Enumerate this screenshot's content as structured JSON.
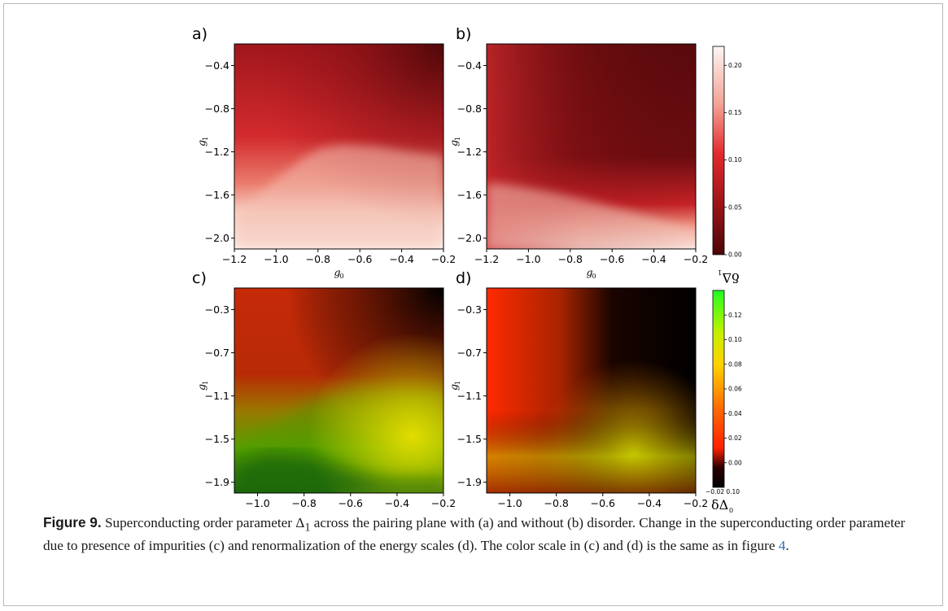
{
  "figure": {
    "panel_labels": [
      "a)",
      "b)",
      "c)",
      "d)"
    ],
    "axis_labels": {
      "x_main": "g",
      "x_sub": "0",
      "y_main": "g",
      "y_sub": "1"
    },
    "colorbars": {
      "top": {
        "ticks": [
          "0.00",
          "0.05",
          "0.10",
          "0.15",
          "0.20"
        ]
      },
      "bottom": {
        "ticks": [
          "0.00",
          "0.02",
          "0.04",
          "0.06",
          "0.08",
          "0.10",
          "0.12"
        ],
        "bottom_tick_label": "−0.02 0.10",
        "top_label_delta": "δΔ",
        "top_label_sub": "1",
        "bottom_label_delta": "δΔ",
        "bottom_label_sub": "0"
      }
    },
    "caption": {
      "label": "Figure 9.",
      "p1": " Superconducting order parameter Δ",
      "p1_sub": "1",
      "p2": " across the pairing plane with (a) and without (b) disorder. Change in the superconducting order parameter due to presence of impurities (c) and renormalization of the energy scales (d). The color scale in (c) and (d) is the same as in figure ",
      "ref": "4",
      "end": "."
    }
  },
  "chart_data": [
    {
      "type": "heatmap",
      "panel": "a)",
      "xlabel": "g0",
      "ylabel": "g1",
      "x_ticks": [
        "−1.2",
        "−1.0",
        "−0.8",
        "−0.6",
        "−0.4",
        "−0.2"
      ],
      "y_ticks": [
        "−0.4",
        "−0.8",
        "−1.2",
        "−1.6",
        "−2.0"
      ],
      "xlim": [
        -1.2,
        -0.2
      ],
      "ylim": [
        -2.1,
        -0.2
      ],
      "colorbar_range": [
        0.0,
        0.22
      ],
      "colormap": "dark-red to white"
    },
    {
      "type": "heatmap",
      "panel": "b)",
      "xlabel": "g0",
      "ylabel": "g1",
      "x_ticks": [
        "−1.2",
        "−1.0",
        "−0.8",
        "−0.6",
        "−0.4",
        "−0.2"
      ],
      "y_ticks": [
        "−0.4",
        "−0.8",
        "−1.2",
        "−1.6",
        "−2.0"
      ],
      "xlim": [
        -1.2,
        -0.2
      ],
      "ylim": [
        -2.1,
        -0.2
      ],
      "colorbar_range": [
        0.0,
        0.22
      ],
      "colormap": "dark-red to white"
    },
    {
      "type": "heatmap",
      "panel": "c)",
      "xlabel": "g0",
      "ylabel": "g1",
      "x_ticks": [
        "−1.0",
        "−0.8",
        "−0.6",
        "−0.4",
        "−0.2"
      ],
      "y_ticks": [
        "−0.3",
        "−0.7",
        "−1.1",
        "−1.5",
        "−1.9"
      ],
      "xlim": [
        -1.1,
        -0.2
      ],
      "ylim": [
        -2.0,
        -0.1
      ],
      "colorbar_range": [
        -0.02,
        0.14
      ],
      "colormap": "black-red-yellow-green"
    },
    {
      "type": "heatmap",
      "panel": "d)",
      "xlabel": "g0",
      "ylabel": "g1",
      "x_ticks": [
        "−1.0",
        "−0.8",
        "−0.6",
        "−0.4",
        "−0.2"
      ],
      "y_ticks": [
        "−0.3",
        "−0.7",
        "−1.1",
        "−1.5",
        "−1.9"
      ],
      "xlim": [
        -1.1,
        -0.2
      ],
      "ylim": [
        -2.0,
        -0.1
      ],
      "colorbar_range": [
        -0.02,
        0.14
      ],
      "colormap": "black-red-yellow-green"
    }
  ]
}
